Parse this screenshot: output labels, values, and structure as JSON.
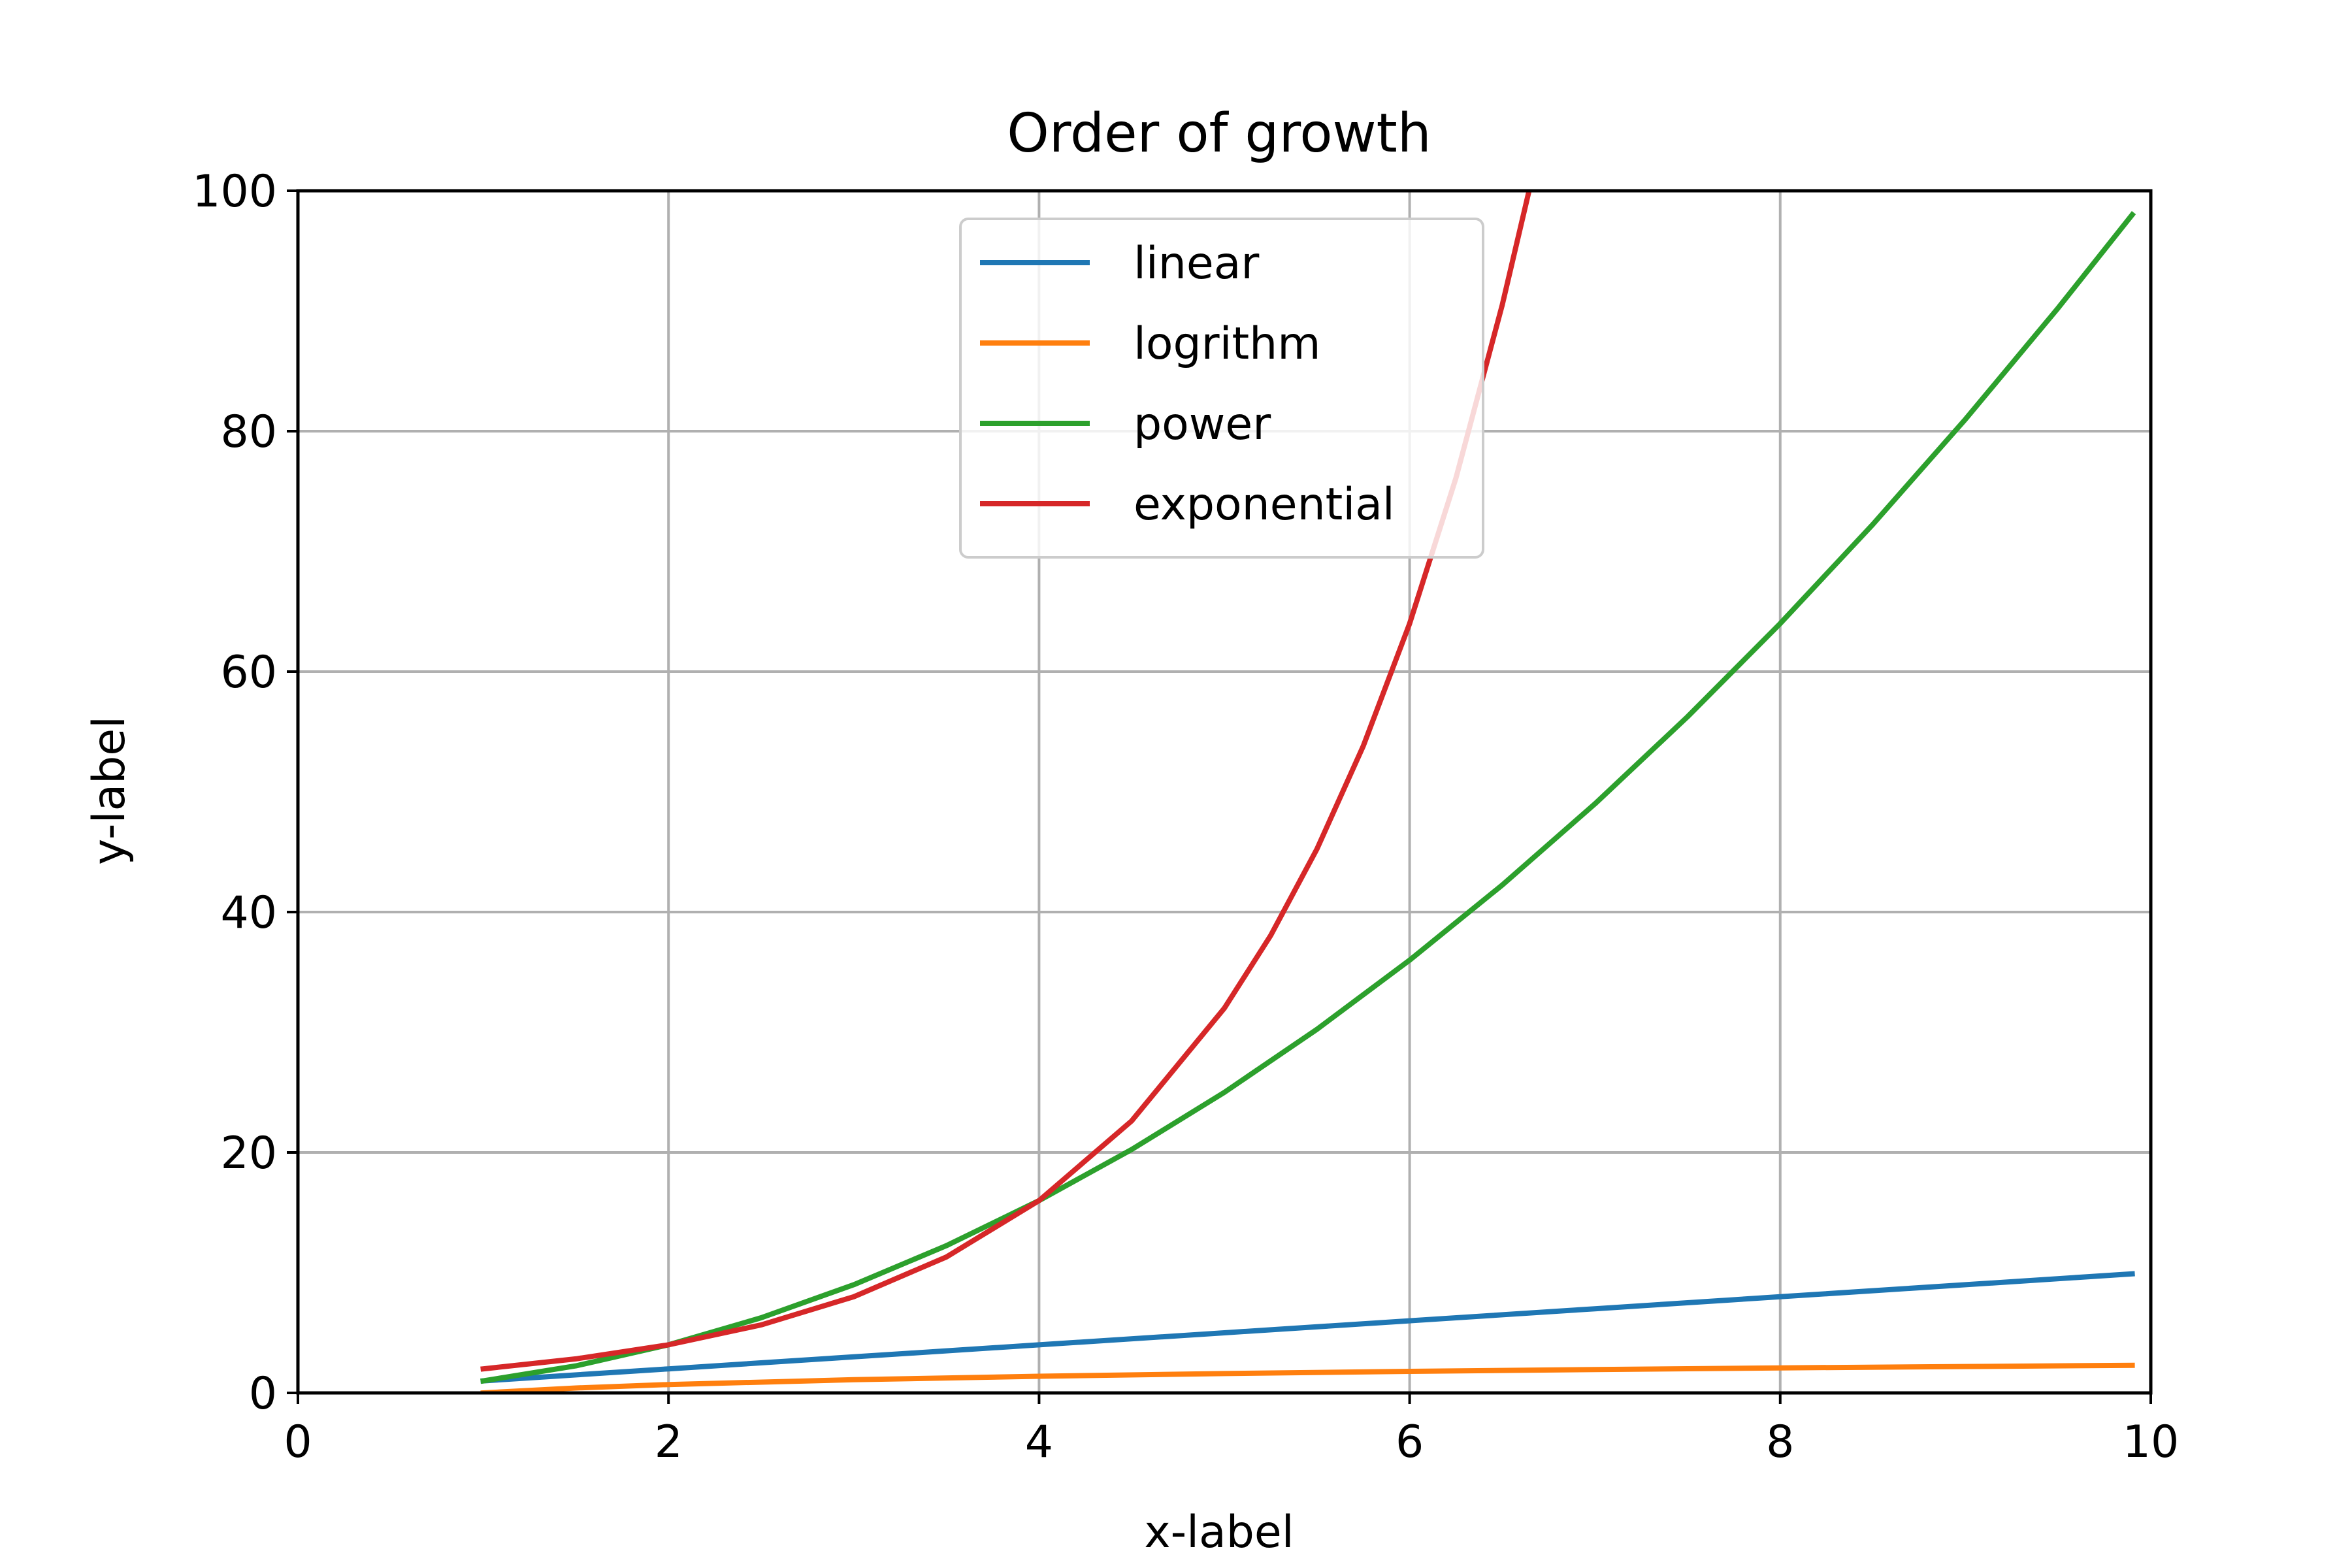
{
  "chart_data": {
    "type": "line",
    "title": "Order of growth",
    "xlabel": "x-label",
    "ylabel": "y-label",
    "xlim": [
      0,
      10
    ],
    "ylim": [
      0,
      100
    ],
    "xticks": [
      0,
      2,
      4,
      6,
      8,
      10
    ],
    "yticks": [
      0,
      20,
      40,
      60,
      80,
      100
    ],
    "grid": true,
    "legend_position": "upper center",
    "series": [
      {
        "name": "linear",
        "color": "#1f77b4",
        "x": [
          1,
          2,
          3,
          4,
          5,
          6,
          7,
          8,
          9,
          9.9
        ],
        "y": [
          1,
          2,
          3,
          4,
          5,
          6,
          7,
          8,
          9,
          9.9
        ]
      },
      {
        "name": "logrithm",
        "color": "#ff7f0e",
        "x": [
          1,
          1.5,
          2,
          3,
          4,
          5,
          6,
          7,
          8,
          9,
          9.9
        ],
        "y": [
          0,
          0.405,
          0.693,
          1.099,
          1.386,
          1.609,
          1.792,
          1.946,
          2.079,
          2.197,
          2.293
        ]
      },
      {
        "name": "power",
        "color": "#2ca02c",
        "x": [
          1,
          1.5,
          2,
          2.5,
          3,
          3.5,
          4,
          4.5,
          5,
          5.5,
          6,
          6.5,
          7,
          7.5,
          8,
          8.5,
          9,
          9.5,
          9.9
        ],
        "y": [
          1,
          2.25,
          4,
          6.25,
          9,
          12.25,
          16,
          20.25,
          25,
          30.25,
          36,
          42.25,
          49,
          56.25,
          64,
          72.25,
          81,
          90.25,
          98.01
        ]
      },
      {
        "name": "exponential",
        "color": "#d62728",
        "x": [
          1,
          1.5,
          2,
          2.5,
          3,
          3.5,
          4,
          4.5,
          5,
          5.25,
          5.5,
          5.75,
          6,
          6.25,
          6.5,
          6.64
        ],
        "y": [
          2,
          2.83,
          4,
          5.66,
          8,
          11.31,
          16,
          22.63,
          32,
          38.05,
          45.25,
          53.82,
          64,
          76.11,
          90.51,
          99.7
        ]
      }
    ]
  }
}
